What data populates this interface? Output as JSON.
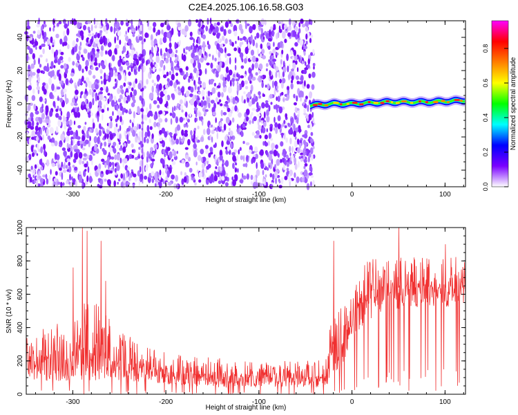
{
  "title": "C2E4.2025.106.16.58.G03",
  "chart_data": [
    {
      "type": "heatmap",
      "title": "C2E4.2025.106.16.58.G03",
      "xlabel": "Height of straight line (km)",
      "ylabel": "Frequency (Hz)",
      "xlim": [
        -350,
        122
      ],
      "ylim": [
        -50,
        50
      ],
      "xticks": [
        -300,
        -200,
        -100,
        0,
        100
      ],
      "yticks": [
        -40,
        -20,
        0,
        20,
        40
      ],
      "noise_region_x": [
        -350,
        -45
      ],
      "signal_track": {
        "x_range": [
          -45,
          122
        ],
        "frequency_hz": [
          [
            -45,
            -1
          ],
          [
            -20,
            0
          ],
          [
            0,
            0
          ],
          [
            40,
            1
          ],
          [
            80,
            1
          ],
          [
            122,
            2
          ]
        ],
        "peak_normalized_amplitude": 0.9
      },
      "noise_normalized_amplitude_range": [
        0.0,
        0.15
      ],
      "colorbar": {
        "label": "Normalized spectral amplitude",
        "ticks": [
          "0.0",
          "0.2",
          "0.4",
          "0.6",
          "0.8"
        ],
        "range": [
          0,
          0.96
        ],
        "colors": [
          "#ffffff",
          "#7a00ff",
          "#0000ff",
          "#00ffff",
          "#00ff00",
          "#ffff00",
          "#ff7f00",
          "#ff0000",
          "#ff00ff"
        ]
      }
    },
    {
      "type": "line",
      "xlabel": "Height of straight line (km)",
      "ylabel": "SNR (10 * v/v)",
      "xlim": [
        -350,
        122
      ],
      "ylim": [
        0,
        1000
      ],
      "xticks": [
        -300,
        -200,
        -100,
        0,
        100
      ],
      "yticks": [
        0,
        200,
        400,
        600,
        800,
        1000
      ],
      "line_color": "#f03030",
      "series": [
        {
          "envelope_x": [
            -350,
            -300,
            -290,
            -280,
            -260,
            -240,
            -200,
            -150,
            -100,
            -50,
            -30,
            -20,
            -10,
            0,
            10,
            20,
            40,
            60,
            80,
            100,
            122
          ],
          "envelope_low": [
            80,
            80,
            80,
            80,
            80,
            80,
            60,
            40,
            40,
            40,
            40,
            80,
            150,
            300,
            400,
            450,
            500,
            520,
            520,
            520,
            530
          ],
          "envelope_mid": [
            220,
            230,
            280,
            260,
            200,
            170,
            130,
            110,
            100,
            100,
            100,
            300,
            330,
            450,
            560,
            620,
            640,
            640,
            640,
            640,
            650
          ],
          "envelope_high": [
            370,
            450,
            600,
            700,
            450,
            350,
            250,
            220,
            200,
            200,
            210,
            500,
            550,
            600,
            780,
            820,
            830,
            830,
            820,
            820,
            830
          ],
          "peaks": [
            [
              -290,
              1000
            ],
            [
              -285,
              980
            ],
            [
              -270,
              920
            ],
            [
              -300,
              760
            ],
            [
              -265,
              680
            ],
            [
              -20,
              920
            ],
            [
              50,
              1000
            ],
            [
              100,
              900
            ]
          ]
        }
      ]
    }
  ]
}
